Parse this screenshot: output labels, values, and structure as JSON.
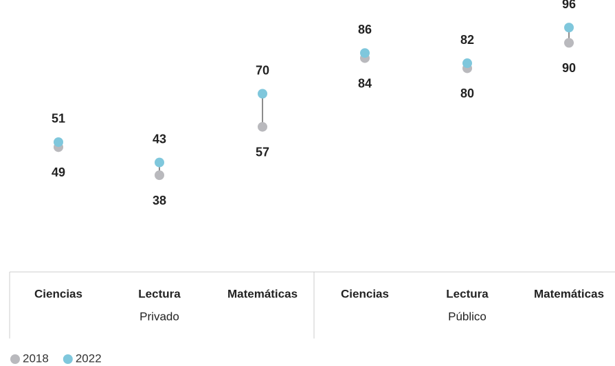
{
  "chart_data": {
    "type": "dumbbell",
    "categories": [
      "Ciencias",
      "Lectura",
      "Matemáticas",
      "Ciencias",
      "Lectura",
      "Matemáticas"
    ],
    "groups": [
      "Privado",
      "Público"
    ],
    "series": [
      {
        "name": "2018",
        "color": "#b9b9bd",
        "values": [
          49,
          38,
          57,
          84,
          80,
          90
        ]
      },
      {
        "name": "2022",
        "color": "#7fc7dc",
        "values": [
          51,
          43,
          70,
          86,
          82,
          96
        ]
      }
    ],
    "ylim": [
      0,
      100
    ]
  }
}
